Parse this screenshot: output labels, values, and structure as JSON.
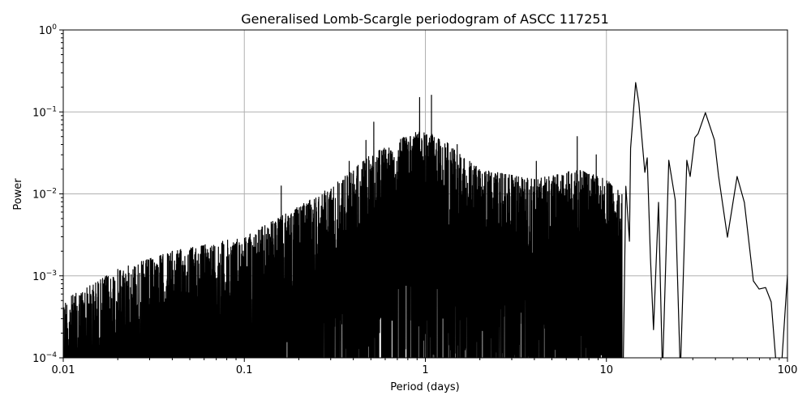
{
  "chart_data": {
    "type": "line",
    "title": "Generalised Lomb-Scargle periodogram of ASCC 117251",
    "xlabel": "Period (days)",
    "ylabel": "Power",
    "xscale": "log",
    "yscale": "log",
    "xlim": [
      0.01,
      100
    ],
    "ylim": [
      0.0001,
      1
    ],
    "grid": true,
    "line_color": "#000000",
    "grid_color": "#b0b0b0",
    "x_ticks": [
      {
        "value": 0.01,
        "label": "0.01"
      },
      {
        "value": 0.1,
        "label": "0.1"
      },
      {
        "value": 1,
        "label": "1"
      },
      {
        "value": 10,
        "label": "10"
      },
      {
        "value": 100,
        "label": "100"
      }
    ],
    "y_ticks": [
      {
        "value": 0.0001,
        "base": "10",
        "exp": "−4"
      },
      {
        "value": 0.001,
        "base": "10",
        "exp": "−3"
      },
      {
        "value": 0.01,
        "base": "10",
        "exp": "−2"
      },
      {
        "value": 0.1,
        "base": "10",
        "exp": "−1"
      },
      {
        "value": 1,
        "base": "10",
        "exp": "0"
      }
    ],
    "noisy_region": {
      "period_range": [
        0.01,
        12.2
      ],
      "upper_envelope": [
        [
          0.01,
          0.0005
        ],
        [
          0.02,
          0.0012
        ],
        [
          0.04,
          0.002
        ],
        [
          0.1,
          0.003
        ],
        [
          0.2,
          0.007
        ],
        [
          0.3,
          0.012
        ],
        [
          0.5,
          0.03
        ],
        [
          0.9,
          0.06
        ],
        [
          1.2,
          0.05
        ],
        [
          2,
          0.02
        ],
        [
          4,
          0.015
        ],
        [
          7,
          0.02
        ],
        [
          10,
          0.015
        ],
        [
          12.2,
          0.01
        ]
      ],
      "spikes": [
        [
          0.93,
          0.15
        ],
        [
          1.08,
          0.16
        ],
        [
          0.52,
          0.075
        ],
        [
          0.47,
          0.045
        ],
        [
          0.38,
          0.025
        ],
        [
          6.9,
          0.05
        ],
        [
          8.8,
          0.03
        ],
        [
          4.1,
          0.025
        ],
        [
          0.16,
          0.0125
        ],
        [
          1.5,
          0.04
        ]
      ]
    },
    "smooth_curve": [
      [
        12.2,
        1e-05
      ],
      [
        12.4,
        0.0001
      ],
      [
        12.8,
        0.0124
      ],
      [
        13.4,
        0.00264
      ],
      [
        13.6,
        0.0361
      ],
      [
        14.5,
        0.228
      ],
      [
        15.1,
        0.129
      ],
      [
        16.3,
        0.0183
      ],
      [
        16.8,
        0.0275
      ],
      [
        17.5,
        0.00168
      ],
      [
        18.2,
        0.00022
      ],
      [
        19.4,
        0.00787
      ],
      [
        20.4,
        1e-05
      ],
      [
        22.1,
        0.0257
      ],
      [
        24.0,
        0.0084
      ],
      [
        25.6,
        1e-05
      ],
      [
        27.8,
        0.0257
      ],
      [
        29.0,
        0.0163
      ],
      [
        30.8,
        0.0486
      ],
      [
        32.1,
        0.0544
      ],
      [
        35.2,
        0.098
      ],
      [
        39.5,
        0.0454
      ],
      [
        41.6,
        0.0167
      ],
      [
        46.6,
        0.00296
      ],
      [
        52.7,
        0.0163
      ],
      [
        57.8,
        0.00787
      ],
      [
        64.8,
        0.000867
      ],
      [
        69.7,
        0.00069
      ],
      [
        75.7,
        0.00072
      ],
      [
        81.3,
        0.00048
      ],
      [
        87.4,
        1e-05
      ],
      [
        92.1,
        1e-05
      ],
      [
        102,
        0.002
      ]
    ]
  }
}
